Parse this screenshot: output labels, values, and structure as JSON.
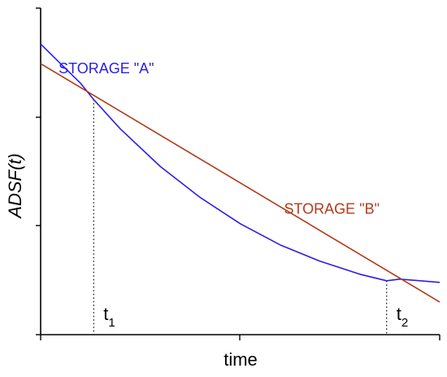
{
  "chart_data": {
    "type": "line",
    "xlabel": "time",
    "ylabel": "ADSF(t)",
    "xlim": [
      0,
      10
    ],
    "ylim": [
      0,
      10
    ],
    "grid": false,
    "colors": {
      "storage_a": "#2a1fe0",
      "storage_b": "#b23a1a",
      "axis": "#000000"
    },
    "series": [
      {
        "name": "STORAGE \"A\"",
        "key": "storage_a",
        "x": [
          0,
          0.5,
          1,
          1.33,
          2,
          3,
          4,
          5,
          6,
          7,
          8,
          8.67,
          9,
          10
        ],
        "y": [
          8.9,
          8.3,
          7.7,
          7.2,
          6.3,
          5.15,
          4.2,
          3.4,
          2.75,
          2.25,
          1.85,
          1.65,
          1.7,
          1.6
        ]
      },
      {
        "name": "STORAGE \"B\"",
        "key": "storage_b",
        "x": [
          0,
          10
        ],
        "y": [
          8.3,
          1.0
        ]
      }
    ],
    "annotations": [
      {
        "key": "t1",
        "base": "t",
        "sub": "1",
        "x": 1.33,
        "y": 7.2
      },
      {
        "key": "t2",
        "base": "t",
        "sub": "2",
        "x": 8.67,
        "y": 1.65
      }
    ],
    "series_labels": [
      {
        "key": "storage_a",
        "text": "STORAGE \"A\"",
        "x": 0.45,
        "y": 8.0
      },
      {
        "key": "storage_b",
        "text": "STORAGE \"B\"",
        "x": 6.1,
        "y": 3.7
      }
    ]
  }
}
